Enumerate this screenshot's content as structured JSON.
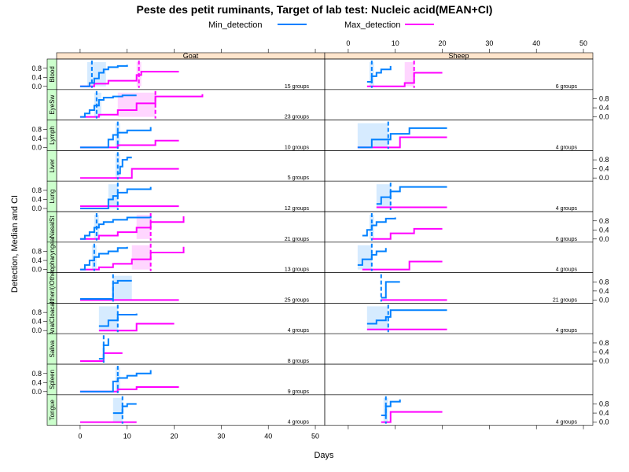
{
  "title": "Peste des petit ruminants, Target of lab test: Nucleic acid(MEAN+CI)",
  "legend": [
    {
      "name": "Min_detection",
      "color": "#0080ff"
    },
    {
      "name": "Max_detection",
      "color": "#ff00ff"
    }
  ],
  "xlabel": "Days",
  "ylabel": "Detection, Median and CI",
  "columns": [
    "Goat",
    "Sheep"
  ],
  "colors": {
    "min": "#0080ff",
    "max": "#ff00ff",
    "strip_col": "#ffe5cc",
    "strip_row": "#ccffcc",
    "ci_min": "#cce6ff",
    "ci_max": "#ffccff"
  },
  "chart_data": {
    "type": "line",
    "title": "Peste des petit ruminants, Target of lab test: Nucleic acid(MEAN+CI)",
    "xlabel": "Days",
    "ylabel": "Detection, Median and CI",
    "xlim": [
      -5,
      52
    ],
    "ylim": [
      0,
      1
    ],
    "x_ticks": [
      0,
      10,
      20,
      30,
      40,
      50
    ],
    "y_ticks": [
      0.0,
      0.4,
      0.8
    ],
    "panels": [
      {
        "row": "Blood",
        "col": "Goat",
        "groups_label": "15 groups",
        "min": {
          "x": [
            0,
            2,
            3,
            4,
            5,
            6,
            8,
            10
          ],
          "y": [
            0,
            0.15,
            0.35,
            0.6,
            0.75,
            0.85,
            0.9,
            0.95
          ],
          "median": 2.5,
          "ci": [
            1.5,
            5.5
          ]
        },
        "max": {
          "x": [
            0,
            3,
            6,
            12,
            13,
            21
          ],
          "y": [
            0,
            0.12,
            0.25,
            0.5,
            0.65,
            0.65
          ],
          "median": 12.5,
          "ci": [
            12,
            13
          ]
        }
      },
      {
        "row": "Blood",
        "col": "Sheep",
        "groups_label": "6 groups",
        "min": {
          "x": [
            4,
            5,
            6,
            7,
            9
          ],
          "y": [
            0.2,
            0.45,
            0.6,
            0.75,
            0.9
          ],
          "median": 5,
          "ci": [
            4.5,
            5.5
          ]
        },
        "max": {
          "x": [
            4,
            12,
            14,
            20
          ],
          "y": [
            0,
            0.15,
            0.6,
            0.6
          ],
          "median": 14,
          "ci": [
            12,
            14
          ]
        }
      },
      {
        "row": "EyeSw",
        "col": "Goat",
        "groups_label": "23 groups",
        "min": {
          "x": [
            0,
            1,
            2,
            3,
            4,
            5,
            7,
            9,
            12
          ],
          "y": [
            0,
            0.15,
            0.3,
            0.5,
            0.75,
            0.85,
            0.9,
            0.95,
            0.95
          ],
          "median": 3.5,
          "ci": [
            3,
            4.5
          ]
        },
        "max": {
          "x": [
            0,
            4,
            8,
            12,
            16,
            26
          ],
          "y": [
            0,
            0.1,
            0.3,
            0.6,
            0.9,
            1.0
          ],
          "median": 16,
          "ci": [
            8,
            16
          ]
        }
      },
      {
        "row": "Lymph",
        "col": "Goat",
        "groups_label": "10 groups",
        "min": {
          "x": [
            0,
            6,
            7,
            8,
            10,
            15
          ],
          "y": [
            0,
            0.35,
            0.55,
            0.65,
            0.75,
            0.9
          ],
          "median": 8,
          "ci": [
            7.5,
            8.5
          ]
        },
        "max": {
          "x": [
            0,
            8,
            16,
            21
          ],
          "y": [
            0,
            0.1,
            0.3,
            0.3
          ],
          "median": null,
          "ci": null
        }
      },
      {
        "row": "Lymph",
        "col": "Sheep",
        "groups_label": "4 groups",
        "min": {
          "x": [
            2,
            5,
            9,
            13,
            21
          ],
          "y": [
            0,
            0.35,
            0.6,
            0.85,
            0.85
          ],
          "median": 8.5,
          "ci": [
            2,
            8.5
          ]
        },
        "max": {
          "x": [
            2,
            11,
            21
          ],
          "y": [
            0,
            0.45,
            0.45
          ],
          "median": null,
          "ci": null
        }
      },
      {
        "row": "Liver",
        "col": "Goat",
        "groups_label": "5 groups",
        "min": {
          "x": [
            8,
            8.5,
            9,
            10,
            11
          ],
          "y": [
            0.2,
            0.5,
            0.8,
            0.9,
            0.9
          ],
          "median": 8,
          "ci": [
            7.5,
            8.5
          ]
        },
        "max": {
          "x": [
            0,
            11,
            21
          ],
          "y": [
            0,
            0.4,
            0.4
          ],
          "median": null,
          "ci": null
        }
      },
      {
        "row": "Lung",
        "col": "Goat",
        "groups_label": "12 groups",
        "min": {
          "x": [
            0,
            6,
            7,
            8,
            10,
            15
          ],
          "y": [
            0,
            0.4,
            0.55,
            0.7,
            0.85,
            0.95
          ],
          "median": 8,
          "ci": [
            6,
            8
          ]
        },
        "max": {
          "x": [
            0,
            21
          ],
          "y": [
            0.1,
            0.1
          ],
          "median": null,
          "ci": null
        }
      },
      {
        "row": "Lung",
        "col": "Sheep",
        "groups_label": "4 groups",
        "min": {
          "x": [
            6,
            7,
            9,
            11,
            21
          ],
          "y": [
            0.2,
            0.5,
            0.75,
            0.95,
            0.95
          ],
          "median": 9,
          "ci": [
            6,
            9
          ]
        },
        "max": {
          "x": [
            6,
            21
          ],
          "y": [
            0.05,
            0.05
          ],
          "median": null,
          "ci": null
        }
      },
      {
        "row": "NasalSw",
        "col": "Goat",
        "groups_label": "21 groups",
        "min": {
          "x": [
            0,
            1,
            2,
            3,
            4,
            5,
            7,
            10,
            15
          ],
          "y": [
            0,
            0.15,
            0.3,
            0.5,
            0.65,
            0.75,
            0.85,
            0.95,
            1.0
          ],
          "median": 3.5,
          "ci": [
            3,
            4
          ]
        },
        "max": {
          "x": [
            0,
            4,
            8,
            12,
            15,
            22
          ],
          "y": [
            0,
            0.15,
            0.3,
            0.5,
            0.75,
            1.0
          ],
          "median": 15,
          "ci": [
            12,
            15
          ]
        }
      },
      {
        "row": "NasalSw",
        "col": "Sheep",
        "groups_label": "6 groups",
        "min": {
          "x": [
            3,
            4,
            5,
            6,
            8,
            10
          ],
          "y": [
            0.15,
            0.4,
            0.6,
            0.75,
            0.9,
            0.95
          ],
          "median": 5,
          "ci": [
            4.5,
            5.5
          ]
        },
        "max": {
          "x": [
            5,
            9,
            14,
            20
          ],
          "y": [
            0,
            0.25,
            0.45,
            0.45
          ],
          "median": null,
          "ci": null
        }
      },
      {
        "row": "Oropharyngeal",
        "col": "Goat",
        "groups_label": "13 groups",
        "min": {
          "x": [
            0,
            1,
            2,
            3,
            4,
            6,
            8,
            10
          ],
          "y": [
            0,
            0.2,
            0.4,
            0.55,
            0.7,
            0.8,
            0.95,
            1.0
          ],
          "median": 3,
          "ci": [
            2.5,
            3.5
          ]
        },
        "max": {
          "x": [
            0,
            4,
            7,
            11,
            15,
            22
          ],
          "y": [
            0,
            0.1,
            0.25,
            0.45,
            0.75,
            1.0
          ],
          "median": 15,
          "ci": [
            11,
            15
          ]
        }
      },
      {
        "row": "Oropharyngeal",
        "col": "Sheep",
        "groups_label": "4 groups",
        "min": {
          "x": [
            2,
            3,
            5,
            6,
            8
          ],
          "y": [
            0.2,
            0.45,
            0.65,
            0.8,
            0.95
          ],
          "median": 5,
          "ci": [
            2,
            5
          ]
        },
        "max": {
          "x": [
            3,
            13,
            20
          ],
          "y": [
            0,
            0.35,
            0.35
          ],
          "median": null,
          "ci": null
        }
      },
      {
        "row": "Other",
        "col": "Goat",
        "groups_label": "25 groups",
        "min": {
          "x": [
            0,
            7,
            8,
            11
          ],
          "y": [
            0.05,
            0.75,
            0.85,
            0.85
          ],
          "median": 7,
          "ci": [
            7,
            11
          ]
        },
        "max": {
          "x": [
            0,
            21
          ],
          "y": [
            0,
            0
          ],
          "median": null,
          "ci": null
        }
      },
      {
        "row": "Other",
        "col": "Sheep",
        "groups_label": "21 groups",
        "min": {
          "x": [
            7,
            8,
            11
          ],
          "y": [
            0.1,
            0.8,
            0.8
          ],
          "median": 7,
          "ci": null
        },
        "max": {
          "x": [
            7,
            21
          ],
          "y": [
            0,
            0
          ],
          "median": null,
          "ci": null
        }
      },
      {
        "row": "AnalCloacal",
        "col": "Goat",
        "groups_label": "4 groups",
        "min": {
          "x": [
            4,
            6,
            8,
            12
          ],
          "y": [
            0.2,
            0.45,
            0.7,
            0.75
          ],
          "median": 8,
          "ci": [
            4,
            8
          ]
        },
        "max": {
          "x": [
            4,
            12,
            20
          ],
          "y": [
            0,
            0.3,
            0.3
          ],
          "median": null,
          "ci": null
        }
      },
      {
        "row": "AnalCloacal",
        "col": "Sheep",
        "groups_label": "4 groups",
        "min": {
          "x": [
            4,
            6,
            8,
            9,
            21
          ],
          "y": [
            0.3,
            0.45,
            0.6,
            0.9,
            0.9
          ],
          "median": 8.5,
          "ci": [
            4,
            8.5
          ]
        },
        "max": {
          "x": [
            4,
            21
          ],
          "y": [
            0.05,
            0.05
          ],
          "median": null,
          "ci": null
        }
      },
      {
        "row": "Saliva",
        "col": "Goat",
        "groups_label": "8 groups",
        "min": {
          "x": [
            4,
            5,
            6
          ],
          "y": [
            0.1,
            0.7,
            1.0
          ],
          "median": 5,
          "ci": null
        },
        "max": {
          "x": [
            0,
            5,
            9
          ],
          "y": [
            0,
            0.35,
            0.35
          ],
          "median": null,
          "ci": null
        }
      },
      {
        "row": "Spleen",
        "col": "Goat",
        "groups_label": "9 groups",
        "min": {
          "x": [
            0,
            7,
            8,
            10,
            12,
            15
          ],
          "y": [
            0,
            0.45,
            0.6,
            0.7,
            0.8,
            0.95
          ],
          "median": 8,
          "ci": [
            7.5,
            8.5
          ]
        },
        "max": {
          "x": [
            0,
            8,
            12,
            21
          ],
          "y": [
            0,
            0.1,
            0.2,
            0.2
          ],
          "median": null,
          "ci": null
        }
      },
      {
        "row": "Tongue",
        "col": "Goat",
        "groups_label": "4 groups",
        "min": {
          "x": [
            7,
            9,
            10,
            12
          ],
          "y": [
            0.4,
            0.7,
            0.8,
            0.8
          ],
          "median": 9,
          "ci": [
            7,
            9
          ]
        },
        "max": {
          "x": [
            0,
            7,
            12
          ],
          "y": [
            0,
            0,
            0
          ],
          "median": null,
          "ci": null
        }
      },
      {
        "row": "Tongue",
        "col": "Sheep",
        "groups_label": "4 groups",
        "min": {
          "x": [
            7,
            8,
            9,
            11
          ],
          "y": [
            0.3,
            0.7,
            0.9,
            1.0
          ],
          "median": 8,
          "ci": [
            7.5,
            8.5
          ]
        },
        "max": {
          "x": [
            7,
            9,
            20
          ],
          "y": [
            0,
            0.45,
            0.45
          ],
          "median": null,
          "ci": null
        }
      }
    ],
    "rows": [
      {
        "name": "Blood",
        "strip": "Blood"
      },
      {
        "name": "EyeSw",
        "strip": "EyeSw"
      },
      {
        "name": "Lymph",
        "strip": "Lymph"
      },
      {
        "name": "Liver",
        "strip": "Liver"
      },
      {
        "name": "Lung",
        "strip": "Lung"
      },
      {
        "name": "NasalSw",
        "strip": "NasalSt"
      },
      {
        "name": "Oropharyngeal",
        "strip": "Oropharyngeal"
      },
      {
        "name": "Other",
        "strip": "Other/(/Other"
      },
      {
        "name": "AnalCloacal",
        "strip": "AnalCloacal"
      },
      {
        "name": "Saliva",
        "strip": "Saliva"
      },
      {
        "name": "Spleen",
        "strip": "Spleen"
      },
      {
        "name": "Tongue",
        "strip": "Tongue"
      }
    ]
  }
}
